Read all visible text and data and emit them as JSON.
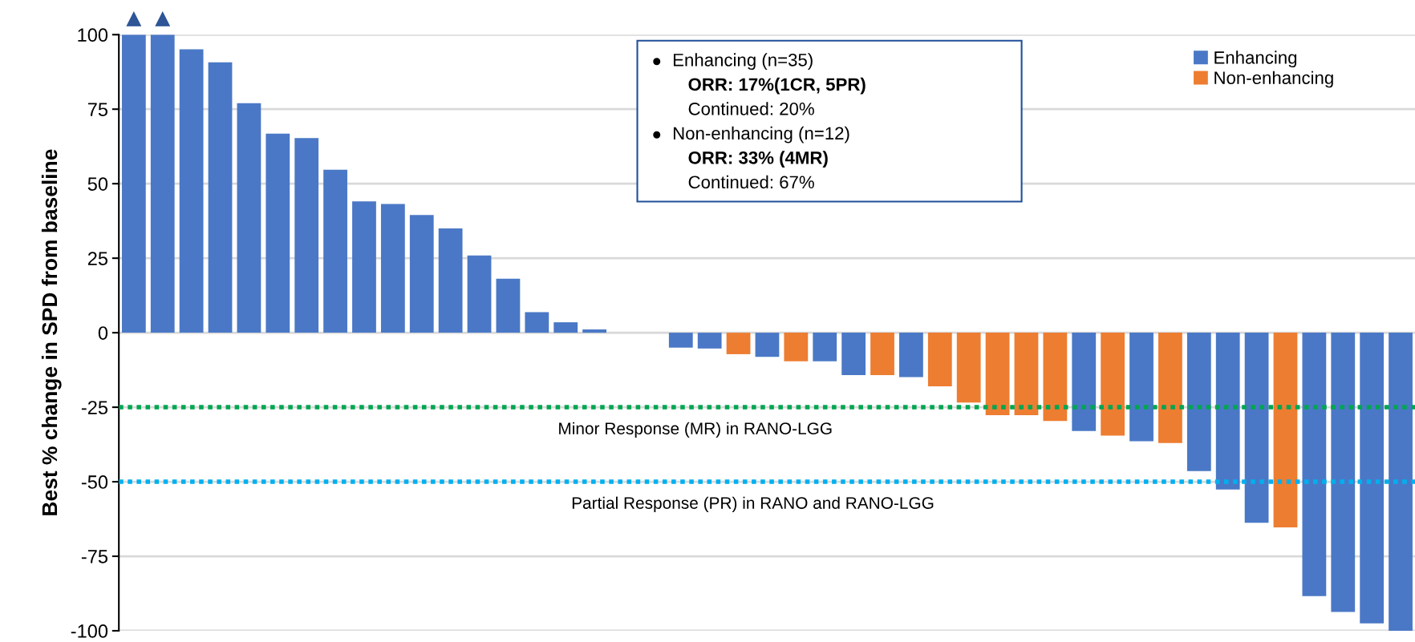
{
  "chart_data": {
    "type": "bar",
    "ylabel": "Best % change in SPD from baseline",
    "categories": [
      null,
      null,
      null,
      null,
      null,
      null,
      null,
      null,
      null,
      null,
      null,
      null,
      null,
      null,
      null,
      null,
      null,
      null,
      null,
      null,
      null,
      null,
      null,
      null,
      null,
      null,
      null,
      null,
      null,
      null,
      null,
      null,
      null,
      null,
      null,
      null,
      null,
      null,
      null,
      null,
      null,
      null,
      null,
      null,
      null
    ],
    "series": [
      {
        "name": "Enhancing",
        "color": "#4a78c6",
        "values": [
          100,
          100,
          95.1,
          90.7,
          77.0,
          66.8,
          65.3,
          54.7,
          44.1,
          43.2,
          39.5,
          35.0,
          25.9,
          18.1,
          6.9,
          3.5,
          1.1,
          0,
          0,
          -5.0,
          -5.3,
          null,
          -8.1,
          null,
          -9.6,
          -14.2,
          null,
          -14.9,
          null,
          null,
          null,
          null,
          null,
          -33.0,
          null,
          -36.4,
          null,
          -46.4,
          -52.6,
          -63.8,
          null,
          -88.4,
          -93.7,
          -97.5,
          -100
        ]
      },
      {
        "name": "Non-enhancing",
        "color": "#ed7d31",
        "values": [
          null,
          null,
          null,
          null,
          null,
          null,
          null,
          null,
          null,
          null,
          null,
          null,
          null,
          null,
          null,
          null,
          null,
          null,
          null,
          null,
          null,
          -7.2,
          null,
          -9.6,
          null,
          null,
          -14.2,
          null,
          -18.0,
          -23.4,
          -27.7,
          -27.7,
          -29.6,
          null,
          -34.5,
          null,
          -37.0,
          null,
          null,
          null,
          -65.3,
          null,
          null,
          null,
          null
        ]
      }
    ],
    "ylim": [
      -100,
      100
    ],
    "yticks": [
      -100,
      -75,
      -50,
      -25,
      0,
      25,
      50,
      75,
      100
    ],
    "grid": "y",
    "legend": "top right",
    "ref_lines": [
      {
        "axis": "y",
        "value": -25,
        "label": "Minor Response (MR) in RANO-LGG",
        "color": "#00a651",
        "line_style": "dotted"
      },
      {
        "axis": "y",
        "value": -50,
        "label": "Partial Response (PR) in RANO and RANO-LGG",
        "color": "#00b0f0",
        "line_style": "dotted"
      }
    ],
    "annotations": [
      "Enhancing (n=35)",
      "ORR: 17%(1CR, 5PR)",
      "Continued: 20%",
      "Non-enhancing (n=12)",
      "ORR: 33% (4MR)",
      "Continued: 67%"
    ]
  }
}
